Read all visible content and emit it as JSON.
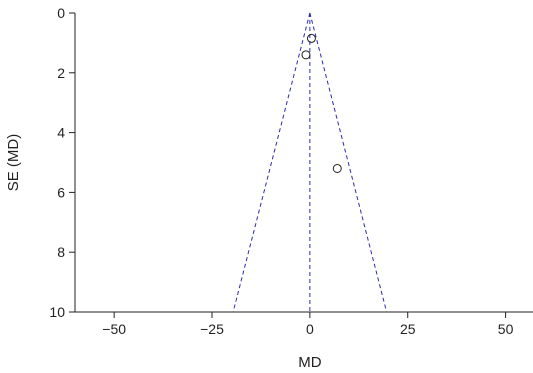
{
  "chart_data": {
    "type": "scatter",
    "title": "",
    "xlabel": "MD",
    "ylabel": "SE (MD)",
    "xlim": [
      -60,
      57
    ],
    "ylim": [
      0,
      10
    ],
    "y_inverted": true,
    "xticks": [
      -50,
      -25,
      0,
      25,
      50
    ],
    "xtick_labels": [
      "−50",
      "−25",
      "0",
      "25",
      "50"
    ],
    "yticks": [
      0,
      2,
      4,
      6,
      8,
      10
    ],
    "ytick_labels": [
      "0",
      "2",
      "4",
      "6",
      "8",
      "10"
    ],
    "grid": false,
    "legend": "none",
    "points": [
      {
        "x": 0.4,
        "y": 0.85
      },
      {
        "x": -1.0,
        "y": 1.4
      },
      {
        "x": 7.0,
        "y": 5.2
      }
    ],
    "funnel": {
      "center": 0,
      "apex_se": 0,
      "base_se": 10,
      "base_left": -19.6,
      "base_right": 19.6,
      "style": "dashed",
      "color": "#2b2bb0"
    },
    "marker_color": "#231f20",
    "axis_color": "#231f20"
  }
}
